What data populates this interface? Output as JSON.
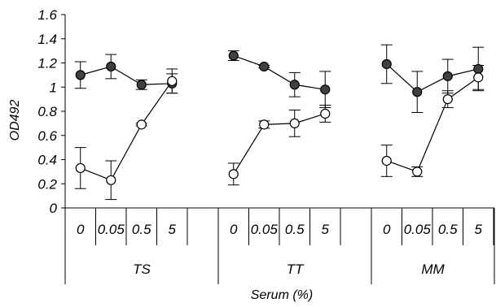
{
  "chart_data": {
    "type": "line",
    "ylabel": "OD492",
    "xlabel": "Serum (%)",
    "ylim": [
      0,
      1.6
    ],
    "yticks": [
      "1.6",
      "1.4",
      "1.2",
      "1",
      "0.8",
      "0.6",
      "0.4",
      "0.2",
      "0"
    ],
    "grid": false,
    "groups": [
      {
        "label": "TS",
        "categories": [
          "0",
          "0.05",
          "0.5",
          "5"
        ],
        "series": [
          {
            "fill": "#404040",
            "values": [
              1.1,
              1.17,
              1.02,
              1.03
            ],
            "errors": [
              0.11,
              0.1,
              0.04,
              0.08
            ]
          },
          {
            "fill": "#ffffff",
            "values": [
              0.33,
              0.23,
              0.69,
              1.05
            ],
            "errors": [
              0.17,
              0.16,
              0.01,
              0.1
            ]
          }
        ]
      },
      {
        "label": "TT",
        "categories": [
          "0",
          "0.05",
          "0.5",
          "5"
        ],
        "series": [
          {
            "fill": "#404040",
            "values": [
              1.26,
              1.17,
              1.02,
              0.98
            ],
            "errors": [
              0.04,
              0.01,
              0.1,
              0.15
            ]
          },
          {
            "fill": "#ffffff",
            "values": [
              0.28,
              0.69,
              0.7,
              0.78
            ],
            "errors": [
              0.09,
              0.03,
              0.11,
              0.07
            ]
          }
        ]
      },
      {
        "label": "MM",
        "categories": [
          "0",
          "0.05",
          "0.5",
          "5"
        ],
        "series": [
          {
            "fill": "#404040",
            "values": [
              1.19,
              0.96,
              1.09,
              1.15
            ],
            "errors": [
              0.16,
              0.17,
              0.14,
              0.18
            ]
          },
          {
            "fill": "#ffffff",
            "values": [
              0.39,
              0.3,
              0.9,
              1.08
            ],
            "errors": [
              0.13,
              0.04,
              0.07,
              0.1
            ]
          }
        ]
      }
    ]
  }
}
